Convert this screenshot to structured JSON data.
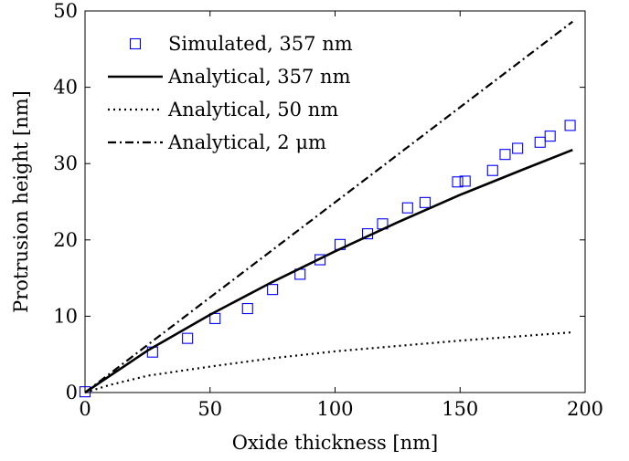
{
  "chart_data": {
    "type": "line",
    "xlabel": "Oxide thickness [nm]",
    "ylabel": "Protrusion height [nm]",
    "xlim": [
      0,
      200
    ],
    "ylim": [
      0,
      50
    ],
    "xticks": [
      0,
      50,
      100,
      150,
      200
    ],
    "yticks": [
      0,
      10,
      20,
      30,
      40,
      50
    ],
    "grid": false,
    "legend_position": "top-left",
    "series": [
      {
        "name": "Simulated, 357 nm",
        "style": "markers",
        "marker": "open-square",
        "color": "#0000ff",
        "x": [
          0,
          27,
          41,
          52,
          65,
          75,
          86,
          94,
          102,
          113,
          119,
          129,
          136,
          149,
          152,
          163,
          168,
          173,
          182,
          186,
          194
        ],
        "y": [
          0.1,
          5.3,
          7.1,
          9.7,
          11.0,
          13.5,
          15.5,
          17.4,
          19.4,
          20.8,
          22.1,
          24.2,
          24.9,
          27.6,
          27.7,
          29.1,
          31.2,
          32.0,
          32.8,
          33.6,
          35.0
        ]
      },
      {
        "name": "Analytical, 357 nm",
        "style": "solid",
        "color": "#000000",
        "x": [
          0,
          25,
          50,
          75,
          100,
          125,
          150,
          175,
          195
        ],
        "y": [
          0,
          5.5,
          10.2,
          14.5,
          18.5,
          22.3,
          25.9,
          29.2,
          31.8
        ]
      },
      {
        "name": "Analytical, 50 nm",
        "style": "dotted",
        "color": "#000000",
        "x": [
          0,
          10,
          25,
          50,
          75,
          100,
          125,
          150,
          175,
          195
        ],
        "y": [
          0,
          1.0,
          2.2,
          3.4,
          4.5,
          5.4,
          6.1,
          6.8,
          7.4,
          7.9
        ]
      },
      {
        "name": "Analytical, 2 μm",
        "style": "dashdot",
        "color": "#000000",
        "x": [
          0,
          195
        ],
        "y": [
          0,
          48.6
        ]
      }
    ]
  }
}
